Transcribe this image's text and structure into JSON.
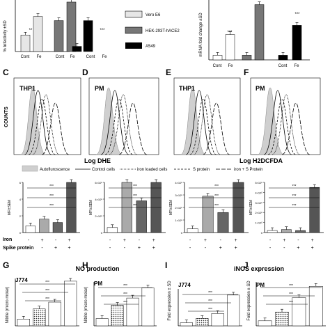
{
  "top": {
    "infectivity": {
      "ylabel": "% Infectivity ±SD",
      "groups": [
        "Cont",
        "Fe"
      ],
      "series_values": [
        [
          8,
          17
        ],
        [
          15,
          24
        ],
        [
          2.5,
          15
        ]
      ],
      "stars": [
        "**",
        "",
        "***"
      ]
    },
    "legend": {
      "items": [
        {
          "label": "Vero E6",
          "color": "#e6e6e6"
        },
        {
          "label": "HEK-293T-hACE2",
          "color": "#777777"
        },
        {
          "label": "A549",
          "color": "#000000"
        }
      ]
    },
    "mrna": {
      "ylabel": "mRNA fold change ±SD",
      "groups": [
        "Cont",
        "Fe"
      ],
      "series_values": [
        [
          1,
          5.5
        ],
        [
          1,
          12
        ],
        [
          1,
          7.5
        ]
      ],
      "stars": [
        "***",
        "",
        "***"
      ]
    }
  },
  "flow": {
    "panels": [
      {
        "letter": "C",
        "name": "THP1"
      },
      {
        "letter": "D",
        "name": "PM"
      },
      {
        "letter": "E",
        "name": "THP1"
      },
      {
        "letter": "F",
        "name": "PM"
      }
    ],
    "ylabel": "COUNTS",
    "xlabel_left": "Log DHE",
    "xlabel_right": "Log H2DCFDA",
    "legend": [
      "Autofluroscence",
      "Control cells",
      "iron loaded cells",
      "S protein",
      "iron + S Protein"
    ]
  },
  "mfi": {
    "panels": [
      {
        "ylabel": "MFI±SEM",
        "ticks": [
          "0",
          "2",
          "4",
          "6"
        ],
        "values": [
          0.4,
          0.8,
          0.6,
          4.8
        ]
      },
      {
        "ylabel": "MFI±SEM",
        "ticks": [
          "0",
          "2×10⁵",
          "4×10⁵",
          "6×10⁵"
        ],
        "values": [
          0.3,
          3.6,
          1.9,
          4.2
        ]
      },
      {
        "ylabel": "MFI±SEM",
        "ticks": [
          "0",
          "1×10⁵",
          "2×10⁵",
          "3×10⁵",
          "4×10⁵"
        ],
        "values": [
          0.3,
          2.9,
          1.6,
          4.2
        ]
      },
      {
        "ylabel": "MFI±SEM",
        "ticks": [
          "0",
          "1×10⁵",
          "2×10⁵",
          "3×10⁵",
          "4×10⁵",
          "5×10⁵"
        ],
        "values": [
          0.2,
          0.3,
          0.2,
          4.5
        ]
      }
    ],
    "row_iron": "Iron",
    "row_spike": "Spike protein",
    "iron": [
      "-",
      "+",
      "-",
      "+"
    ],
    "spike": [
      "-",
      "-",
      "+",
      "+"
    ]
  },
  "bottom": {
    "no_title": "NO production",
    "inos_title": "iNOS expression",
    "nitrite_ylabel": "Nitrite (micro molar)",
    "fold_ylabel": "Fold expression ± SD",
    "panels": [
      {
        "letter": "G",
        "cell": "J774",
        "values": [
          1.0,
          2.5,
          3.5,
          6.6
        ]
      },
      {
        "letter": "H",
        "cell": "PM",
        "values": [
          1.0,
          2.8,
          3.8,
          5.2
        ]
      },
      {
        "letter": "I",
        "cell": "J774",
        "values": [
          0.5,
          1.2,
          2.0,
          5.0
        ]
      },
      {
        "letter": "J",
        "cell": "PM",
        "values": [
          0.8,
          2.2,
          4.5,
          6.3
        ]
      }
    ]
  },
  "chart_data": [
    {
      "type": "bar",
      "categories": [
        "Cont",
        "Fe"
      ],
      "series": [
        {
          "name": "Vero E6",
          "values": [
            8,
            17
          ]
        },
        {
          "name": "HEK-293T-hACE2",
          "values": [
            15,
            24
          ]
        },
        {
          "name": "A549",
          "values": [
            2.5,
            15
          ]
        }
      ],
      "ylabel": "% Infectivity ±SD"
    },
    {
      "type": "bar",
      "categories": [
        "Cont",
        "Fe"
      ],
      "series": [
        {
          "name": "Vero E6",
          "values": [
            1,
            5.5
          ]
        },
        {
          "name": "HEK-293T-hACE2",
          "values": [
            1,
            12
          ]
        },
        {
          "name": "A549",
          "values": [
            1,
            7.5
          ]
        }
      ],
      "ylabel": "mRNA fold change ±SD"
    },
    {
      "type": "bar",
      "values": [
        1.0,
        2.5,
        3.5,
        6.6
      ],
      "ylabel": "Nitrite (micro molar)",
      "title": "NO production"
    },
    {
      "type": "bar",
      "values": [
        0.5,
        1.2,
        2.0,
        5.0
      ],
      "ylabel": "Fold expression ± SD",
      "title": "iNOS expression"
    }
  ]
}
